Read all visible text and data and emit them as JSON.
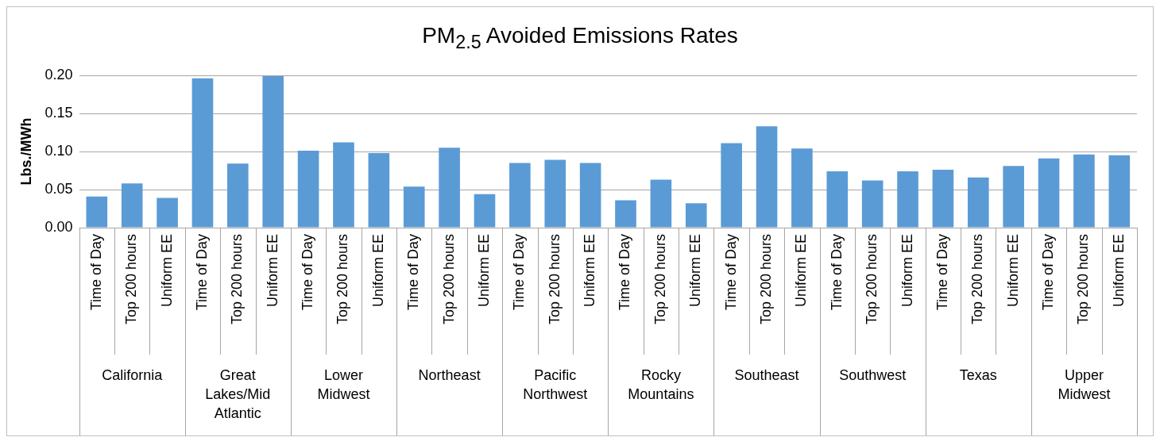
{
  "chart_data": {
    "type": "bar",
    "title": "PM$_{2.5}$ Avoided Emissions Rates",
    "ylabel": "Lbs./MWh",
    "categories": [
      "Time of Day",
      "Top 200 hours",
      "Uniform EE",
      "Time of Day",
      "Top 200 hours",
      "Uniform EE",
      "Time of Day",
      "Top 200 hours",
      "Uniform EE",
      "Time of Day",
      "Top 200 hours",
      "Uniform EE",
      "Time of Day",
      "Top 200 hours",
      "Uniform EE",
      "Time of Day",
      "Top 200 hours",
      "Uniform EE",
      "Time of Day",
      "Top 200 hours",
      "Uniform EE",
      "Time of Day",
      "Top 200 hours",
      "Uniform EE",
      "Time of Day",
      "Top 200 hours",
      "Uniform EE",
      "Time of Day",
      "Top 200 hours",
      "Uniform EE"
    ],
    "annotations": [
      "California",
      "Great Lakes/Mid Atlantic",
      "Lower Midwest",
      "Northeast",
      "Pacific Northwest",
      "Rocky Mountains",
      "Southeast",
      "Southwest",
      "Texas",
      "Upper Midwest"
    ],
    "values": [
      0.041,
      0.058,
      0.039,
      0.196,
      0.084,
      0.199,
      0.101,
      0.112,
      0.098,
      0.054,
      0.105,
      0.044,
      0.085,
      0.089,
      0.085,
      0.036,
      0.063,
      0.032,
      0.111,
      0.133,
      0.104,
      0.074,
      0.062,
      0.074,
      0.076,
      0.066,
      0.081,
      0.091,
      0.096,
      0.095
    ],
    "color": "#5b9bd5",
    "ylim": [
      0,
      0.2
    ],
    "yticks": [
      {
        "value": 0,
        "label": "0.00"
      },
      {
        "value": 0.05,
        "label": "0.05"
      },
      {
        "value": 0.1,
        "label": "0.10"
      },
      {
        "value": 0.15,
        "label": "0.15"
      },
      {
        "value": 0.2,
        "label": "0.20"
      }
    ],
    "grid": "y",
    "legend": false
  }
}
